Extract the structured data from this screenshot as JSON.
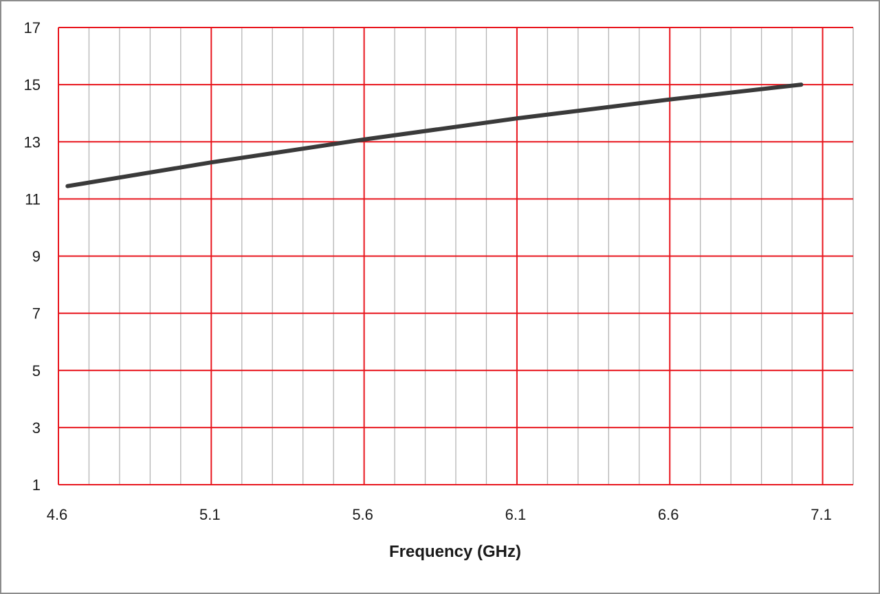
{
  "chart_data": {
    "type": "line",
    "title": "",
    "xlabel": "Frequency (GHz)",
    "ylabel": "",
    "xlim": [
      4.6,
      7.2
    ],
    "ylim": [
      1,
      17
    ],
    "x_ticks": [
      "4.6",
      "5.1",
      "5.6",
      "6.1",
      "6.6",
      "7.1"
    ],
    "y_ticks": [
      "1",
      "3",
      "5",
      "7",
      "9",
      "11",
      "13",
      "15",
      "17"
    ],
    "x_minor_step": 0.1,
    "grid": true,
    "legend": "none",
    "colors": {
      "major_grid": "#e8141c",
      "minor_grid": "#b4b4b4",
      "line": "#3a3a3a"
    },
    "series": [
      {
        "x": [
          4.63,
          5.1,
          5.6,
          6.1,
          6.6,
          7.03
        ],
        "y": [
          11.45,
          12.28,
          13.08,
          13.82,
          14.48,
          15.0
        ]
      }
    ]
  }
}
